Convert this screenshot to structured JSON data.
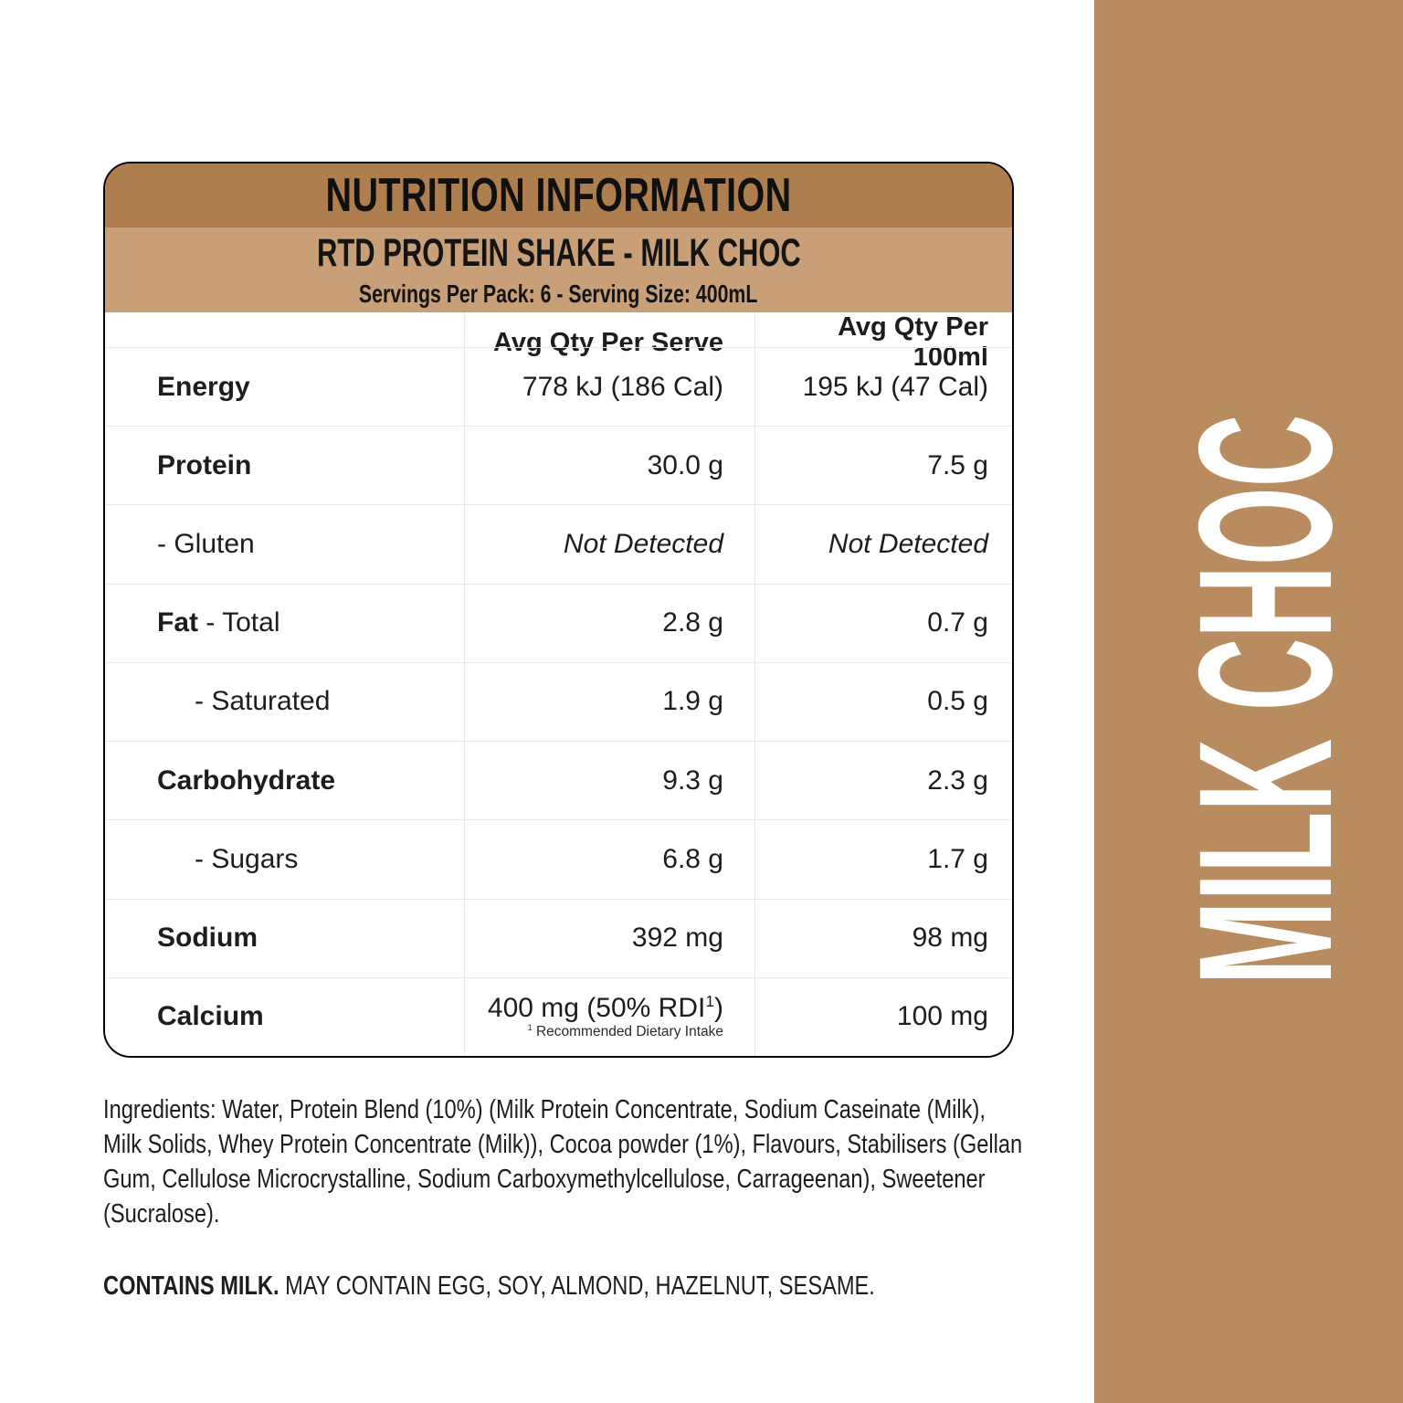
{
  "header": {
    "title": "NUTRITION INFORMATION",
    "product": "RTD PROTEIN SHAKE - MILK CHOC",
    "servings": "Servings Per Pack: 6 - Serving Size: 400mL"
  },
  "table": {
    "columns": {
      "serve": "Avg Qty Per Serve",
      "per100": "Avg Qty Per 100ml"
    },
    "rows": [
      {
        "label": "Energy",
        "serve": "778 kJ (186 Cal)",
        "per100": "195 kJ (47 Cal)"
      },
      {
        "label": "Protein",
        "serve": "30.0 g",
        "per100": "7.5 g"
      },
      {
        "label": "- Gluten",
        "serve": "Not Detected",
        "per100": "Not Detected"
      },
      {
        "label_bold": "Fat",
        "label_rest": " - Total",
        "serve": "2.8 g",
        "per100": "0.7 g"
      },
      {
        "label": "- Saturated",
        "serve": "1.9 g",
        "per100": "0.5 g"
      },
      {
        "label": "Carbohydrate",
        "serve": "9.3 g",
        "per100": "2.3 g"
      },
      {
        "label": "- Sugars",
        "serve": "6.8 g",
        "per100": "1.7 g"
      },
      {
        "label": "Sodium",
        "serve": "392 mg",
        "per100": "98 mg"
      },
      {
        "label": "Calcium",
        "serve_pre": "400 mg (50% RDI",
        "serve_sup": "1",
        "serve_post": ")",
        "footnote_sup": "1",
        "footnote_text": " Recommended Dietary Intake",
        "per100": "100 mg"
      }
    ]
  },
  "ingredients": {
    "text": "Ingredients: Water, Protein Blend (10%) (Milk Protein Concentrate, Sodium Caseinate (Milk), Milk Solids, Whey Protein Concentrate (Milk)), Cocoa powder (1%), Flavours, Stabilisers (Gellan Gum, Cellulose Microcrystalline, Sodium Carboxymethylcellulose, Carrageenan), Sweetener (Sucralose)."
  },
  "allergens": {
    "contains": "CONTAINS MILK.",
    "may_contain": " MAY CONTAIN EGG, SOY, ALMOND, HAZELNUT, SESAME."
  },
  "sidebar": {
    "flavor": "MILK CHOC"
  },
  "colors": {
    "band_dark": "#ae7e4e",
    "band_light": "#c99f77",
    "sidebar_brown": "#b98c60",
    "card_border": "#000000",
    "divider_gray": "#e9e9e9",
    "text": "#1d1d1b",
    "flavor_text": "#ffffff"
  }
}
